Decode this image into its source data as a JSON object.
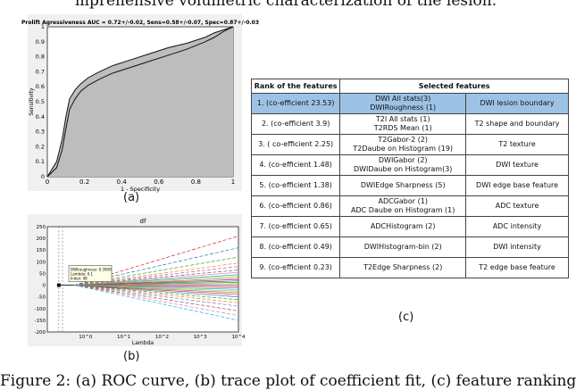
{
  "page": {
    "top_text": "mprehensive volumetric characterization of the lesion.",
    "caption": "Figure 2: (a) ROC curve, (b) trace plot of coefficient fit, (c) feature ranking"
  },
  "labels": {
    "a": "(a)",
    "b": "(b)",
    "c": "(c)"
  },
  "chart_data": [
    {
      "type": "line",
      "title": "Prolift Agressiveness AUC = 0.72+/-0.02, Sens=0.58+/-0.07, Spec=0.87+/-0.03",
      "xlabel": "1 - Specificity",
      "ylabel": "Sensitivity",
      "xlim": [
        0,
        1
      ],
      "ylim": [
        0,
        1
      ],
      "x_ticks": [
        "0",
        "0.2",
        "0.4",
        "0.6",
        "0.8",
        "1"
      ],
      "y_ticks": [
        "0",
        "0.1",
        "0.2",
        "0.3",
        "0.4",
        "0.5",
        "0.6",
        "0.7",
        "0.8",
        "0.9",
        "1"
      ],
      "grid": false,
      "series": [
        {
          "x": [
            0,
            0.05,
            0.08,
            0.1,
            0.12,
            0.15,
            0.18,
            0.22,
            0.28,
            0.35,
            0.45,
            0.55,
            0.65,
            0.75,
            0.85,
            0.9,
            0.95,
            1.0
          ],
          "y": [
            0,
            0.1,
            0.25,
            0.4,
            0.52,
            0.58,
            0.62,
            0.66,
            0.7,
            0.74,
            0.78,
            0.82,
            0.86,
            0.89,
            0.93,
            0.96,
            0.98,
            1.0
          ]
        },
        {
          "x": [
            0,
            0.05,
            0.08,
            0.1,
            0.12,
            0.15,
            0.18,
            0.22,
            0.28,
            0.35,
            0.45,
            0.55,
            0.65,
            0.75,
            0.85,
            0.9,
            0.95,
            1.0
          ],
          "y": [
            0,
            0.06,
            0.18,
            0.32,
            0.45,
            0.52,
            0.57,
            0.61,
            0.65,
            0.69,
            0.73,
            0.77,
            0.81,
            0.85,
            0.9,
            0.93,
            0.97,
            1.0
          ]
        }
      ]
    },
    {
      "type": "line",
      "title": "df",
      "xlabel": "Lambda",
      "ylabel": "",
      "xlim": [
        0.1,
        10000
      ],
      "ylim": [
        -200,
        250
      ],
      "x_scale": "log",
      "x_ticks": [
        "10^0",
        "10^1",
        "10^2",
        "10^3",
        "10^4"
      ],
      "y_ticks": [
        "-200",
        "-150",
        "-100",
        "-50",
        "0",
        "50",
        "100",
        "150",
        "200",
        "250"
      ],
      "annotation": [
        "DWIroughness: 0.3900",
        "Lambda: 0.1",
        "Index: 48"
      ],
      "series_end_values": [
        210,
        160,
        120,
        95,
        80,
        65,
        55,
        45,
        38,
        30,
        24,
        18,
        12,
        6,
        0,
        -6,
        -12,
        -18,
        -25,
        -32,
        -40,
        -50,
        -62,
        -75,
        -90,
        -110,
        -130,
        -150
      ]
    }
  ],
  "table": {
    "headers": [
      "Rank of the features",
      "Selected features"
    ],
    "rows": [
      [
        "1. (co-efficient 23.53)",
        "DWI All stats(3)\nDWIRoughness (1)",
        "DWI lesion boundary"
      ],
      [
        "2. (co-efficient 3.9)",
        "T2I All stats (1)\nT2RDS Mean (1)",
        "T2 shape and boundary"
      ],
      [
        "3. ( co-efficient 2.25)",
        "T2Gabor-2 (2)\nT2Daube on Histogram (19)",
        "T2 texture"
      ],
      [
        "4. (co-efficient 1.48)",
        "DWIGabor (2)\nDWIDaube on Histogram(3)",
        "DWI texture"
      ],
      [
        "5. (co-efficient 1.38)",
        "DWIEdge Sharpness (5)",
        "DWI edge base feature"
      ],
      [
        "6. (co-efficient 0.86)",
        "ADCGabor (1)\nADC Daube on Histogram (1)",
        "ADC texture"
      ],
      [
        "7. (co-efficient 0.65)",
        "ADCHistogram (2)",
        "ADC intensity"
      ],
      [
        "8. (co-efficient 0.49)",
        "DWIHistogram-bin (2)",
        "DWI intensity"
      ],
      [
        "9. (co-efficient 0.23)",
        "T2Edge Sharpness (2)",
        "T2 edge base feature"
      ]
    ]
  },
  "colors": {
    "highlight_row": "#9cc3e6",
    "roc_fill": "#bdbdbd"
  }
}
